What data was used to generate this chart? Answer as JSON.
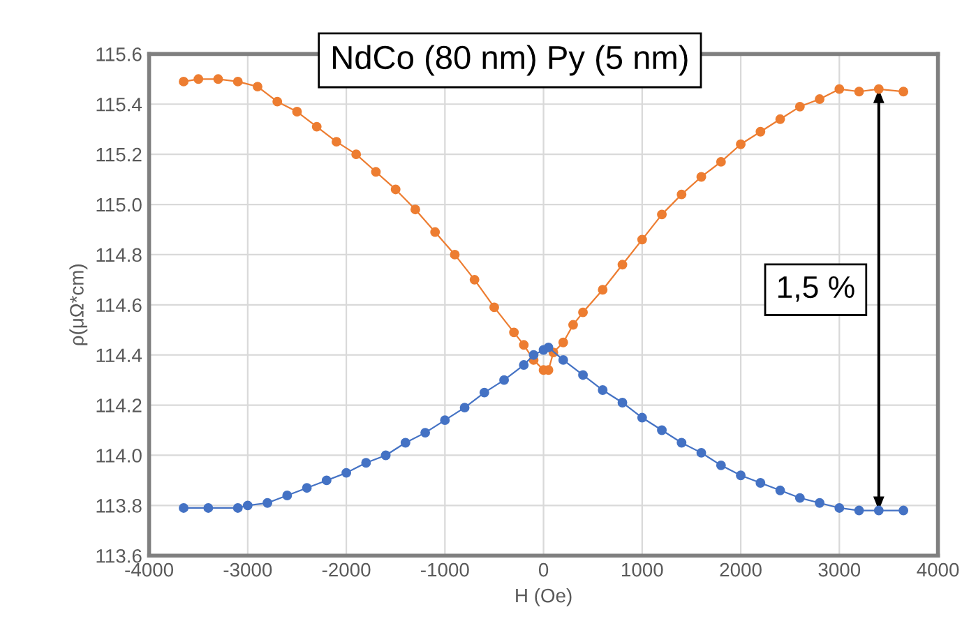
{
  "chart_data": {
    "type": "line",
    "title": "NdCo (80 nm) Py (5 nm)",
    "xlabel": "H (Oe)",
    "ylabel": "ρ(μΩ*cm)",
    "xlim": [
      -4000,
      4000
    ],
    "xticks": [
      -4000,
      -3000,
      -2000,
      -1000,
      0,
      1000,
      2000,
      3000,
      4000
    ],
    "ylim": [
      113.6,
      115.6
    ],
    "yticks": [
      {
        "value": 113.6,
        "label": "113.6"
      },
      {
        "value": 113.8,
        "label": "113.8"
      },
      {
        "value": 114.0,
        "label": "114.0"
      },
      {
        "value": 114.2,
        "label": "114.2"
      },
      {
        "value": 114.4,
        "label": "114.4"
      },
      {
        "value": 114.6,
        "label": "114.6"
      },
      {
        "value": 114.8,
        "label": "114.8"
      },
      {
        "value": 115.0,
        "label": "115.0"
      },
      {
        "value": 115.2,
        "label": "115.2"
      },
      {
        "value": 115.4,
        "label": "115.4"
      },
      {
        "value": 115.6,
        "label": "115.6"
      }
    ],
    "grid": true,
    "marker": "circle",
    "line_style": "solid",
    "annotations": [
      "1,5 %"
    ],
    "series": [
      {
        "color": "#ed7d31",
        "x": [
          -3650,
          -3500,
          -3300,
          -3100,
          -2900,
          -2700,
          -2500,
          -2300,
          -2100,
          -1900,
          -1700,
          -1500,
          -1300,
          -1100,
          -900,
          -700,
          -500,
          -300,
          -200,
          -100,
          0,
          50,
          100,
          200,
          300,
          400,
          600,
          800,
          1000,
          1200,
          1400,
          1600,
          1800,
          2000,
          2200,
          2400,
          2600,
          2800,
          3000,
          3200,
          3400,
          3650
        ],
        "values": [
          115.49,
          115.5,
          115.5,
          115.49,
          115.47,
          115.41,
          115.37,
          115.31,
          115.25,
          115.2,
          115.13,
          115.06,
          114.98,
          114.89,
          114.8,
          114.7,
          114.59,
          114.49,
          114.44,
          114.38,
          114.34,
          114.34,
          114.41,
          114.45,
          114.52,
          114.57,
          114.66,
          114.76,
          114.86,
          114.96,
          115.04,
          115.11,
          115.17,
          115.24,
          115.29,
          115.34,
          115.39,
          115.42,
          115.46,
          115.45,
          115.46,
          115.45
        ]
      },
      {
        "color": "#4472c4",
        "x": [
          -3650,
          -3400,
          -3100,
          -3000,
          -2800,
          -2600,
          -2400,
          -2200,
          -2000,
          -1800,
          -1600,
          -1400,
          -1200,
          -1000,
          -800,
          -600,
          -400,
          -200,
          -100,
          0,
          50,
          200,
          400,
          600,
          800,
          1000,
          1200,
          1400,
          1600,
          1800,
          2000,
          2200,
          2400,
          2600,
          2800,
          3000,
          3200,
          3400,
          3650
        ],
        "values": [
          113.79,
          113.79,
          113.79,
          113.8,
          113.81,
          113.84,
          113.87,
          113.9,
          113.93,
          113.97,
          114.0,
          114.05,
          114.09,
          114.14,
          114.19,
          114.25,
          114.3,
          114.36,
          114.4,
          114.42,
          114.43,
          114.38,
          114.32,
          114.26,
          114.21,
          114.15,
          114.1,
          114.05,
          114.01,
          113.96,
          113.92,
          113.89,
          113.86,
          113.83,
          113.81,
          113.79,
          113.78,
          113.78,
          113.78
        ]
      }
    ]
  }
}
